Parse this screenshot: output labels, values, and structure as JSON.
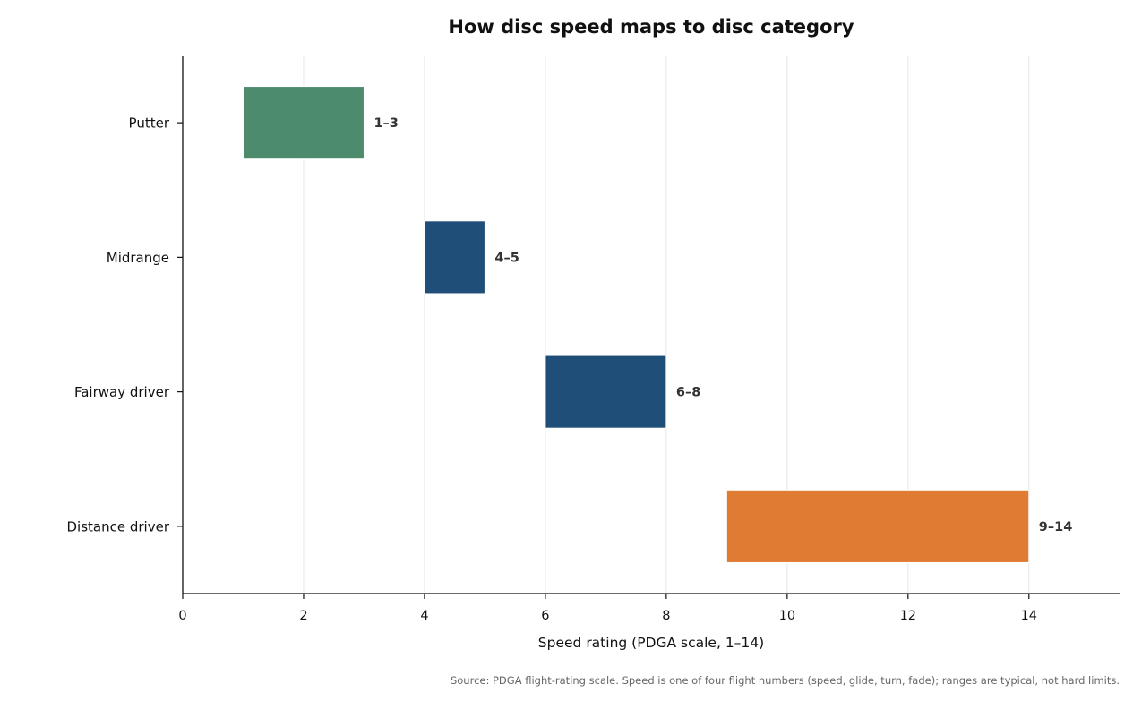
{
  "chart_data": {
    "type": "bar",
    "orientation": "horizontal",
    "title": "How disc speed maps to disc category",
    "xlabel": "Speed rating (PDGA scale, 1–14)",
    "ylabel": "",
    "xlim": [
      0,
      15.5
    ],
    "xticks": [
      0,
      2,
      4,
      6,
      8,
      10,
      12,
      14
    ],
    "grid": "vertical",
    "categories": [
      "Putter",
      "Midrange",
      "Fairway driver",
      "Distance driver"
    ],
    "ranges": [
      {
        "category": "Putter",
        "start": 1,
        "end": 3,
        "label": "1–3",
        "color": "#4c8c6d"
      },
      {
        "category": "Midrange",
        "start": 4,
        "end": 5,
        "label": "4–5",
        "color": "#1f4e79"
      },
      {
        "category": "Fairway driver",
        "start": 6,
        "end": 8,
        "label": "6–8",
        "color": "#1f4e79"
      },
      {
        "category": "Distance driver",
        "start": 9,
        "end": 14,
        "label": "9–14",
        "color": "#e07b33"
      }
    ],
    "source": "Source: PDGA flight-rating scale. Speed is one of four flight numbers (speed, glide, turn, fade); ranges are typical, not hard limits."
  }
}
